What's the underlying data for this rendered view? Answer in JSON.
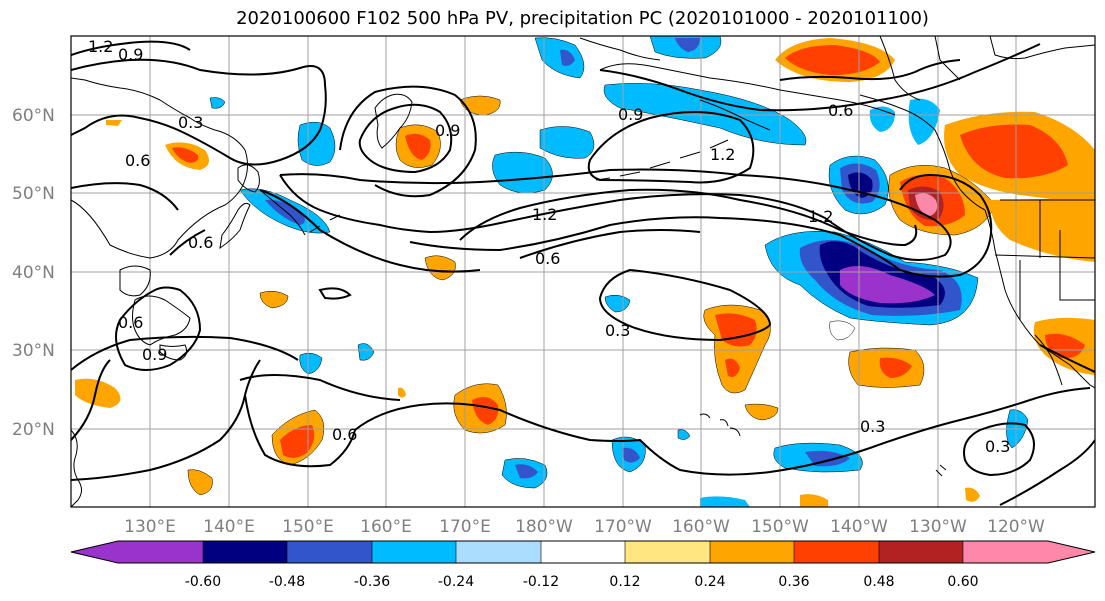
{
  "title": "2020100600 F102 500 hPa PV, precipitation PC (2020101000 - 2020101100)",
  "map": {
    "lat_labels": [
      "60°N",
      "50°N",
      "40°N",
      "30°N",
      "20°N"
    ],
    "lon_labels": [
      "130°E",
      "140°E",
      "150°E",
      "160°E",
      "170°E",
      "180°W",
      "170°W",
      "160°W",
      "150°W",
      "140°W",
      "130°W",
      "120°W"
    ],
    "contour_labels": [
      "1.2",
      "0.9",
      "0.3",
      "0.6",
      "0.9",
      "0.9",
      "1.2",
      "0.6",
      "1.2",
      "0.6",
      "1.2",
      "0.6",
      "0.6",
      "0.9",
      "0.3",
      "0.6",
      "0.3",
      "0.3"
    ],
    "colors": {
      "land_outline": "#000000",
      "grid": "#a0a0a0"
    }
  },
  "colorbar": {
    "colors": [
      "#9933cc",
      "#000080",
      "#3355cc",
      "#00bbff",
      "#aaddff",
      "#ffffff",
      "#ffe680",
      "#ffa500",
      "#ff4000",
      "#b22222",
      "#ff88aa"
    ],
    "tick_labels": [
      "-0.60",
      "-0.48",
      "-0.36",
      "-0.24",
      "-0.12",
      "0.12",
      "0.24",
      "0.36",
      "0.48",
      "0.60"
    ]
  }
}
